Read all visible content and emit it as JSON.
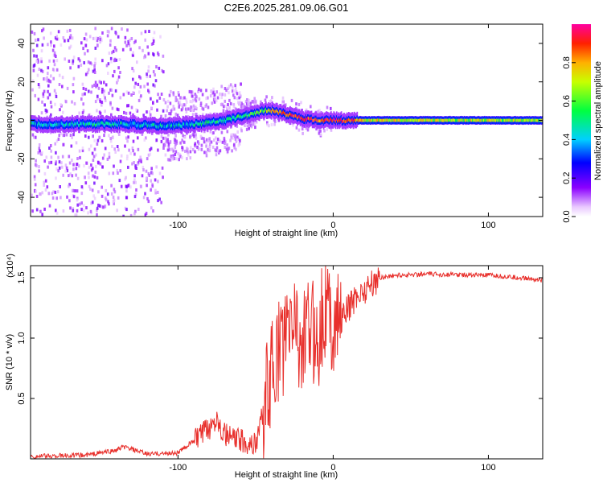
{
  "title": "C2E6.2025.281.09.06.G01",
  "chart_data": [
    {
      "type": "heatmap",
      "xlabel": "Height of straight line (km)",
      "ylabel": "Frequency (Hz)",
      "xlim": [
        -195,
        135
      ],
      "ylim": [
        -50,
        50
      ],
      "xticks": [
        -100,
        0,
        100
      ],
      "xtick_labels": [
        "-100",
        "0",
        "100"
      ],
      "yticks": [
        -40,
        -20,
        0,
        20,
        40
      ],
      "ytick_labels": [
        "-40",
        "-20",
        "0",
        "20",
        "40"
      ],
      "colorbar": {
        "label": "Normalized spectral amplitude",
        "range": [
          0,
          1
        ],
        "ticks": [
          0.0,
          0.2,
          0.4,
          0.6,
          0.8
        ],
        "tick_labels": [
          "0.0",
          "0.2",
          "0.4",
          "0.6",
          "0.8"
        ]
      },
      "ridge": {
        "x": [
          -195,
          -160,
          -130,
          -110,
          -90,
          -70,
          -55,
          -45,
          -38,
          -30,
          -20,
          -10,
          0,
          10,
          20,
          135
        ],
        "freq": [
          -2,
          -2,
          -2,
          -3,
          -2,
          0,
          3,
          5,
          5,
          3,
          1,
          0,
          0,
          0,
          0,
          0
        ],
        "amplitude": [
          0.4,
          0.45,
          0.45,
          0.4,
          0.45,
          0.5,
          0.55,
          0.6,
          0.9,
          0.85,
          0.9,
          0.9,
          0.95,
          0.9,
          0.7,
          0.65
        ]
      }
    },
    {
      "type": "line",
      "xlabel": "Height of straight line (km)",
      "ylabel": "SNR (10 * v/v)",
      "y_multiplier": "(x10⁴)",
      "xlim": [
        -195,
        135
      ],
      "ylim": [
        0,
        1.6
      ],
      "xticks": [
        -100,
        0,
        100
      ],
      "xtick_labels": [
        "-100",
        "0",
        "100"
      ],
      "yticks": [
        0.5,
        1.0,
        1.5
      ],
      "ytick_labels": [
        "0.5",
        "1.0",
        "1.5"
      ],
      "series": [
        {
          "name": "SNR",
          "color": "#e8302c",
          "x": [
            -195,
            -160,
            -140,
            -135,
            -120,
            -100,
            -90,
            -80,
            -75,
            -70,
            -60,
            -50,
            -45,
            -40,
            -35,
            -30,
            -25,
            -20,
            -15,
            -10,
            -5,
            0,
            5,
            10,
            15,
            20,
            25,
            30,
            40,
            60,
            100,
            120,
            135
          ],
          "y": [
            0.02,
            0.03,
            0.07,
            0.1,
            0.04,
            0.05,
            0.15,
            0.25,
            0.35,
            0.2,
            0.15,
            0.12,
            0.4,
            0.7,
            0.9,
            1.0,
            1.2,
            0.9,
            1.1,
            1.0,
            1.3,
            1.1,
            1.15,
            1.25,
            1.35,
            1.4,
            1.45,
            1.5,
            1.52,
            1.53,
            1.52,
            1.5,
            1.48
          ]
        }
      ]
    }
  ]
}
